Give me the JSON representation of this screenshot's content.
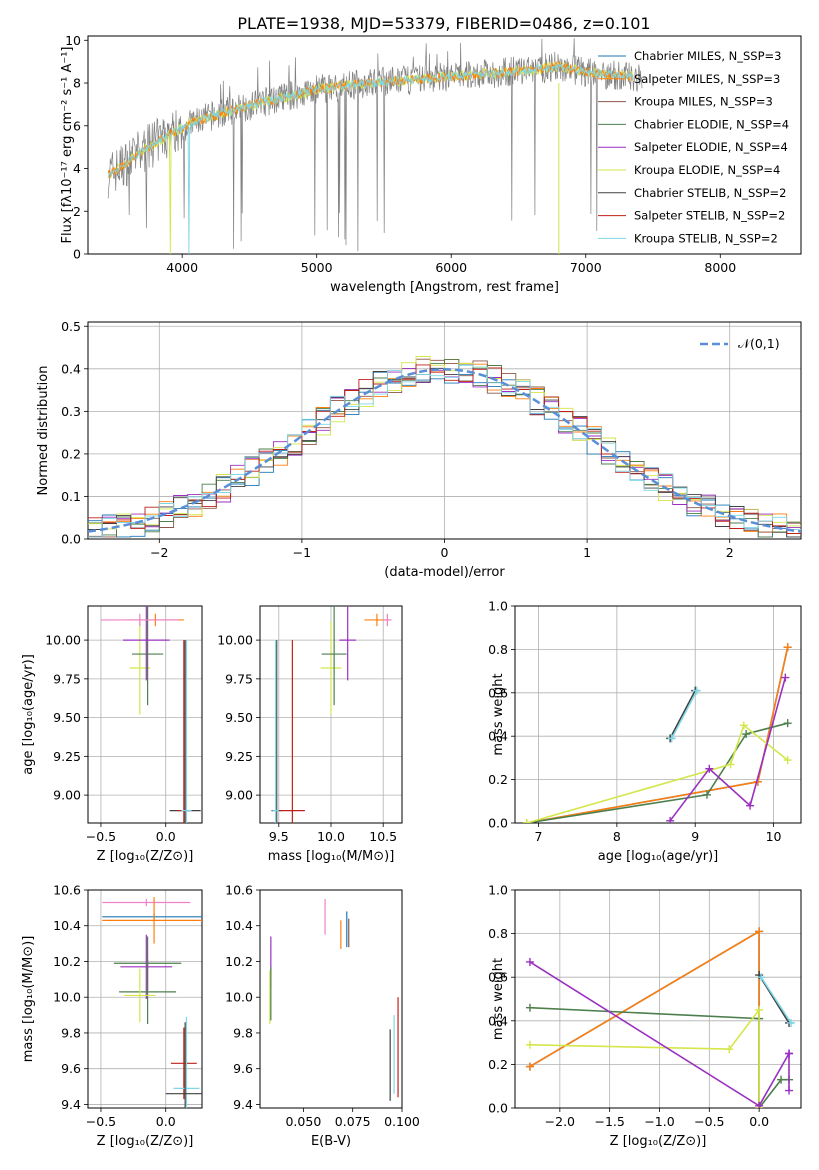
{
  "figure_title": "PLATE=1938, MJD=53379, FIBERID=0486, z=0.101",
  "colors": {
    "chabrier_miles": "#1f77b4",
    "salpeter_miles": "#ff7f0e",
    "kroupa_miles": "#8c564b",
    "chabrier_elodie": "#4d7f4d",
    "salpeter_elodie": "#9b30c0",
    "kroupa_elodie": "#d4e64a",
    "chabrier_stelib": "#404040",
    "salpeter_stelib": "#c0201a",
    "kroupa_stelib": "#7ed6e6",
    "normal": "#5a8fd8",
    "data_spectrum": "#808080",
    "pink": "#ee82c8"
  },
  "chart_data": [
    {
      "id": "spectrum",
      "type": "line",
      "title": "PLATE=1938, MJD=53379, FIBERID=0486, z=0.101",
      "xlabel": "wavelength [Angstrom, rest frame]",
      "ylabel": "Flux [fλ10⁻¹⁷ erg cm⁻² s⁻¹ A⁻¹]",
      "xlim": [
        3300,
        8600
      ],
      "ylim": [
        0,
        10.2
      ],
      "xticks": [
        "4000",
        "5000",
        "6000",
        "7000",
        "8000"
      ],
      "yticks": [
        "0",
        "2",
        "4",
        "6",
        "8",
        "10"
      ],
      "legend_position": "top-right",
      "legend": [
        "Chabrier MILES, N_SSP=3",
        "Salpeter MILES, N_SSP=3",
        "Kroupa MILES, N_SSP=3",
        "Chabrier ELODIE, N_SSP=4",
        "Salpeter ELODIE, N_SSP=4",
        "Kroupa ELODIE, N_SSP=4",
        "Chabrier STELIB, N_SSP=2",
        "Salpeter STELIB, N_SSP=2",
        "Kroupa STELIB, N_SSP=2"
      ],
      "continuum": {
        "x": [
          3450,
          3550,
          3700,
          3900,
          4100,
          4300,
          4600,
          5000,
          5400,
          5800,
          6200,
          6600,
          6800,
          7000,
          7300
        ],
        "y": [
          3.7,
          4.1,
          4.8,
          5.6,
          6.2,
          6.6,
          7.1,
          7.7,
          8.0,
          8.2,
          8.4,
          8.6,
          8.8,
          8.5,
          8.3
        ]
      },
      "grid": false
    },
    {
      "id": "residuals",
      "type": "line",
      "xlabel": "(data-model)/error",
      "ylabel": "Normed distribution",
      "xlim": [
        -2.5,
        2.5
      ],
      "ylim": [
        0,
        0.51
      ],
      "xticks": [
        "−2",
        "−1",
        "0",
        "1",
        "2"
      ],
      "yticks": [
        "0.0",
        "0.1",
        "0.2",
        "0.3",
        "0.4",
        "0.5"
      ],
      "legend": [
        "𝒩(0,1)"
      ],
      "legend_position": "top-right",
      "grid": true,
      "histogram_bin_width": 0.1
    },
    {
      "id": "age_vs_Z",
      "type": "scatter",
      "xlabel": "Z [log₁₀(Z/Z⊙)]",
      "ylabel": "age  [log₁₀(age/yr)]",
      "xlim": [
        -0.6,
        0.28
      ],
      "ylim": [
        8.82,
        10.22
      ],
      "xticks": [
        "−0.5",
        "0.0"
      ],
      "yticks": [
        "9.00",
        "9.25",
        "9.50",
        "9.75",
        "10.00"
      ],
      "grid": true,
      "points": [
        {
          "c": "kroupa_elodie",
          "x": -0.2,
          "y": 9.82,
          "ex": 0.08,
          "ey": 0.3
        },
        {
          "c": "chabrier_elodie",
          "x": -0.14,
          "y": 9.91,
          "ex": 0.12,
          "ey": 0.33
        },
        {
          "c": "salpeter_elodie",
          "x": -0.15,
          "y": 10.0,
          "ex": 0.18,
          "ey": 0.26
        },
        {
          "c": "salpeter_miles",
          "x": -0.08,
          "y": 10.13,
          "ex": 0.22,
          "ey": 0.04
        },
        {
          "c": "pink",
          "x": -0.2,
          "y": 10.13,
          "ex": 0.3,
          "ey": 0.04
        },
        {
          "c": "chabrier_stelib",
          "x": 0.15,
          "y": 8.9,
          "ex": 0.12,
          "ey": 1.1
        },
        {
          "c": "salpeter_stelib",
          "x": 0.14,
          "y": 8.9,
          "ex": 0.05,
          "ey": 1.1
        },
        {
          "c": "kroupa_stelib",
          "x": 0.16,
          "y": 8.9,
          "ex": 0.04,
          "ey": 1.1
        }
      ]
    },
    {
      "id": "age_vs_mass",
      "type": "scatter",
      "xlabel": "mass [log₁₀(M/M⊙)]",
      "ylabel": "",
      "xlim": [
        9.32,
        10.68
      ],
      "ylim": [
        8.82,
        10.22
      ],
      "xticks": [
        "9.5",
        "10.0",
        "10.5"
      ],
      "yticks": [
        "9.00",
        "9.25",
        "9.50",
        "9.75",
        "10.00"
      ],
      "grid": true,
      "points": [
        {
          "c": "kroupa_elodie",
          "x": 10.0,
          "y": 9.82,
          "ex": 0.1,
          "ey": 0.3
        },
        {
          "c": "chabrier_elodie",
          "x": 10.03,
          "y": 9.91,
          "ex": 0.12,
          "ey": 0.33
        },
        {
          "c": "salpeter_elodie",
          "x": 10.16,
          "y": 10.0,
          "ex": 0.08,
          "ey": 0.26
        },
        {
          "c": "salpeter_miles",
          "x": 10.44,
          "y": 10.13,
          "ex": 0.12,
          "ey": 0.04
        },
        {
          "c": "pink",
          "x": 10.54,
          "y": 10.13,
          "ex": 0.04,
          "ey": 0.04
        },
        {
          "c": "chabrier_stelib",
          "x": 9.48,
          "y": 8.9,
          "ex": 0.05,
          "ey": 1.1
        },
        {
          "c": "salpeter_stelib",
          "x": 9.63,
          "y": 8.9,
          "ex": 0.12,
          "ey": 1.1
        },
        {
          "c": "kroupa_stelib",
          "x": 9.47,
          "y": 8.9,
          "ex": 0.03,
          "ey": 1.1
        }
      ]
    },
    {
      "id": "weight_vs_age",
      "type": "line",
      "xlabel": "age  [log₁₀(age/yr)]",
      "ylabel": "mass weight",
      "xlim": [
        6.7,
        10.35
      ],
      "ylim": [
        0,
        1.0
      ],
      "xticks": [
        "7",
        "8",
        "9",
        "10"
      ],
      "yticks": [
        "0.0",
        "0.2",
        "0.4",
        "0.6",
        "0.8",
        "1.0"
      ],
      "grid": true,
      "series": [
        {
          "c": "chabrier_miles",
          "x": [
            6.85,
            9.8,
            10.18
          ],
          "y": [
            0.0,
            0.19,
            0.81
          ]
        },
        {
          "c": "salpeter_miles",
          "x": [
            6.85,
            9.8,
            10.18
          ],
          "y": [
            0.0,
            0.19,
            0.81
          ]
        },
        {
          "c": "chabrier_elodie",
          "x": [
            6.85,
            9.15,
            9.65,
            10.18
          ],
          "y": [
            0.0,
            0.13,
            0.41,
            0.46
          ]
        },
        {
          "c": "kroupa_elodie",
          "x": [
            6.85,
            9.45,
            9.62,
            10.18
          ],
          "y": [
            0.0,
            0.27,
            0.45,
            0.29
          ]
        },
        {
          "c": "salpeter_elodie",
          "x": [
            8.68,
            9.18,
            9.7,
            10.15
          ],
          "y": [
            0.01,
            0.25,
            0.08,
            0.67
          ]
        },
        {
          "c": "chabrier_stelib",
          "x": [
            8.68,
            9.0
          ],
          "y": [
            0.39,
            0.61
          ]
        },
        {
          "c": "kroupa_stelib",
          "x": [
            8.7,
            9.02
          ],
          "y": [
            0.39,
            0.61
          ]
        }
      ]
    },
    {
      "id": "mass_vs_Z",
      "type": "scatter",
      "xlabel": "Z [log₁₀(Z/Z⊙)]",
      "ylabel": "mass [log₁₀(M/M⊙)]",
      "xlim": [
        -0.6,
        0.28
      ],
      "ylim": [
        9.38,
        10.6
      ],
      "xticks": [
        "−0.5",
        "0.0"
      ],
      "yticks": [
        "9.4",
        "9.6",
        "9.8",
        "10.0",
        "10.2",
        "10.4",
        "10.6"
      ],
      "grid": true,
      "points": [
        {
          "c": "pink",
          "x": -0.15,
          "y": 10.53,
          "ex": 0.34,
          "ey": 0.02
        },
        {
          "c": "chabrier_miles",
          "x": -0.09,
          "y": 10.45,
          "ex": 0.4,
          "ey": 0.02
        },
        {
          "c": "salpeter_miles",
          "x": -0.09,
          "y": 10.43,
          "ex": 0.4,
          "ey": 0.13
        },
        {
          "c": "chabrier_elodie",
          "x": -0.14,
          "y": 10.19,
          "ex": 0.26,
          "ey": 0.15
        },
        {
          "c": "salpeter_elodie",
          "x": -0.15,
          "y": 10.17,
          "ex": 0.2,
          "ey": 0.18
        },
        {
          "c": "chabrier_elodie",
          "x": -0.14,
          "y": 10.03,
          "ex": 0.22,
          "ey": 0.18
        },
        {
          "c": "kroupa_elodie",
          "x": -0.2,
          "y": 10.01,
          "ex": 0.12,
          "ey": 0.15
        },
        {
          "c": "salpeter_stelib",
          "x": 0.14,
          "y": 9.63,
          "ex": 0.1,
          "ey": 0.2
        },
        {
          "c": "kroupa_stelib",
          "x": 0.16,
          "y": 9.49,
          "ex": 0.1,
          "ey": 0.4
        },
        {
          "c": "chabrier_stelib",
          "x": 0.15,
          "y": 9.46,
          "ex": 0.15,
          "ey": 0.4
        }
      ]
    },
    {
      "id": "mass_vs_EBV",
      "type": "scatter",
      "xlabel": "E(B-V)",
      "ylabel": "",
      "xlim": [
        0.028,
        0.1
      ],
      "ylim": [
        9.38,
        10.6
      ],
      "xticks": [
        "0.050",
        "0.075",
        "0.100"
      ],
      "yticks": [
        "9.4",
        "9.6",
        "9.8",
        "10.0",
        "10.2",
        "10.4",
        "10.6"
      ],
      "grid": false,
      "points": [
        {
          "c": "salpeter_elodie",
          "x": 0.0335,
          "y": 10.2,
          "ex": 0.0,
          "ey": 0.14
        },
        {
          "c": "kroupa_elodie",
          "x": 0.033,
          "y": 10.0,
          "ex": 0.0,
          "ey": 0.15
        },
        {
          "c": "chabrier_elodie",
          "x": 0.0335,
          "y": 10.02,
          "ex": 0.0,
          "ey": 0.15
        },
        {
          "c": "pink",
          "x": 0.061,
          "y": 10.45,
          "ex": 0.0,
          "ey": 0.1
        },
        {
          "c": "salpeter_miles",
          "x": 0.069,
          "y": 10.35,
          "ex": 0.0,
          "ey": 0.08
        },
        {
          "c": "chabrier_miles",
          "x": 0.072,
          "y": 10.38,
          "ex": 0.0,
          "ey": 0.1
        },
        {
          "c": "kroupa_miles",
          "x": 0.073,
          "y": 10.36,
          "ex": 0.0,
          "ey": 0.08
        },
        {
          "c": "chabrier_stelib",
          "x": 0.094,
          "y": 9.62,
          "ex": 0.0,
          "ey": 0.2
        },
        {
          "c": "salpeter_stelib",
          "x": 0.098,
          "y": 9.72,
          "ex": 0.0,
          "ey": 0.28
        },
        {
          "c": "kroupa_stelib",
          "x": 0.096,
          "y": 9.68,
          "ex": 0.0,
          "ey": 0.22
        }
      ]
    },
    {
      "id": "weight_vs_Z",
      "type": "line",
      "xlabel": "Z [log₁₀(Z/Z⊙)]",
      "ylabel": "mass weight",
      "xlim": [
        -2.45,
        0.42
      ],
      "ylim": [
        0,
        1.0
      ],
      "xticks": [
        "−2.0",
        "−1.5",
        "−1.0",
        "−0.5",
        "0.0"
      ],
      "yticks": [
        "0.0",
        "0.2",
        "0.4",
        "0.6",
        "0.8",
        "1.0"
      ],
      "grid": true,
      "series": [
        {
          "c": "chabrier_miles",
          "x": [
            -2.3,
            0.0,
            0.0
          ],
          "y": [
            0.19,
            0.81,
            0.0
          ]
        },
        {
          "c": "salpeter_miles",
          "x": [
            -2.3,
            0.0,
            0.0
          ],
          "y": [
            0.19,
            0.81,
            0.0
          ]
        },
        {
          "c": "chabrier_elodie",
          "x": [
            -2.3,
            0.0,
            0.0,
            0.22,
            0.3
          ],
          "y": [
            0.46,
            0.41,
            0.0,
            0.13,
            0.13
          ]
        },
        {
          "c": "kroupa_elodie",
          "x": [
            -2.3,
            -0.3,
            0.0,
            0.0
          ],
          "y": [
            0.29,
            0.27,
            0.45,
            0.0
          ]
        },
        {
          "c": "salpeter_elodie",
          "x": [
            -2.3,
            0.0,
            0.3,
            0.3,
            0.3
          ],
          "y": [
            0.67,
            0.01,
            0.25,
            0.08,
            0.25
          ]
        },
        {
          "c": "chabrier_stelib",
          "x": [
            0.0,
            0.3
          ],
          "y": [
            0.61,
            0.39
          ]
        },
        {
          "c": "kroupa_stelib",
          "x": [
            0.02,
            0.32
          ],
          "y": [
            0.6,
            0.39
          ]
        }
      ]
    }
  ]
}
